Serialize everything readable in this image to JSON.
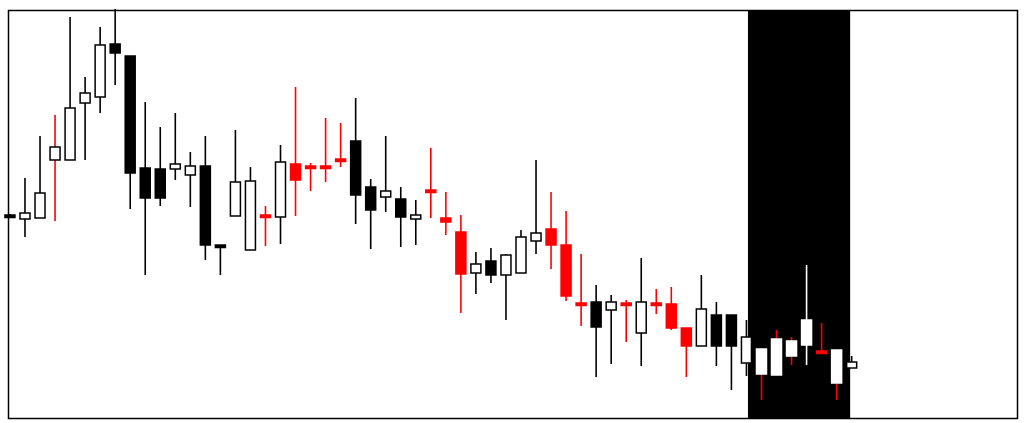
{
  "chart_data": {
    "type": "candlestick",
    "title": "",
    "xlabel": "",
    "ylabel": "",
    "axes_visible": false,
    "grid": false,
    "ylim": [
      0,
      408
    ],
    "xlim": [
      -0.13,
      67
    ],
    "colors": {
      "up_fill": "#ffffff",
      "up_stroke": "#000000",
      "down_black": "#000000",
      "down_red": "#ff0000",
      "highlight_band": "#000000",
      "highlight_candle": "#ffffff",
      "frame": "#000000"
    },
    "highlight_region": {
      "from_index": 49.1,
      "to_index": 55.9
    },
    "candles": [
      {
        "o": 203,
        "h": 204,
        "l": 202,
        "c": 203,
        "s": "black"
      },
      {
        "o": 199,
        "h": 240,
        "l": 181,
        "c": 205,
        "s": "hollow"
      },
      {
        "o": 200,
        "h": 282,
        "l": 200,
        "c": 225,
        "s": "hollow"
      },
      {
        "o": 258,
        "h": 303,
        "l": 197,
        "c": 271,
        "s": "hollow",
        "w": "red"
      },
      {
        "o": 258,
        "h": 401,
        "l": 258,
        "c": 310,
        "s": "hollow"
      },
      {
        "o": 315,
        "h": 341,
        "l": 258,
        "c": 325,
        "s": "hollow"
      },
      {
        "o": 321,
        "h": 391,
        "l": 305,
        "c": 373,
        "s": "hollow"
      },
      {
        "o": 374,
        "h": 409,
        "l": 333,
        "c": 365,
        "s": "black"
      },
      {
        "o": 362,
        "h": 362,
        "l": 209,
        "c": 245,
        "s": "black"
      },
      {
        "o": 250,
        "h": 316,
        "l": 143,
        "c": 220,
        "s": "black"
      },
      {
        "o": 249,
        "h": 291,
        "l": 212,
        "c": 220,
        "s": "black"
      },
      {
        "o": 249,
        "h": 305,
        "l": 238,
        "c": 254,
        "s": "hollow"
      },
      {
        "o": 243,
        "h": 266,
        "l": 211,
        "c": 252,
        "s": "hollow"
      },
      {
        "o": 252,
        "h": 282,
        "l": 158,
        "c": 173,
        "s": "black"
      },
      {
        "o": 173,
        "h": 173,
        "l": 143,
        "c": 173,
        "s": "black"
      },
      {
        "o": 202,
        "h": 288,
        "l": 202,
        "c": 236,
        "s": "hollow"
      },
      {
        "o": 168,
        "h": 251,
        "l": 168,
        "c": 237,
        "s": "hollow"
      },
      {
        "o": 203,
        "h": 212,
        "l": 172,
        "c": 203,
        "s": "red"
      },
      {
        "o": 201,
        "h": 273,
        "l": 174,
        "c": 256,
        "s": "hollow"
      },
      {
        "o": 254,
        "h": 331,
        "l": 202,
        "c": 238,
        "s": "red"
      },
      {
        "o": 252,
        "h": 255,
        "l": 227,
        "c": 252,
        "s": "red"
      },
      {
        "o": 252,
        "h": 300,
        "l": 236,
        "c": 252,
        "s": "red"
      },
      {
        "o": 259,
        "h": 295,
        "l": 251,
        "c": 259,
        "s": "red"
      },
      {
        "o": 277,
        "h": 320,
        "l": 194,
        "c": 223,
        "s": "black"
      },
      {
        "o": 231,
        "h": 239,
        "l": 169,
        "c": 208,
        "s": "black"
      },
      {
        "o": 221,
        "h": 282,
        "l": 206,
        "c": 227,
        "s": "hollow"
      },
      {
        "o": 219,
        "h": 231,
        "l": 171,
        "c": 201,
        "s": "black"
      },
      {
        "o": 199,
        "h": 218,
        "l": 173,
        "c": 203,
        "s": "hollow"
      },
      {
        "o": 228,
        "h": 270,
        "l": 200,
        "c": 228,
        "s": "red"
      },
      {
        "o": 200,
        "h": 226,
        "l": 183,
        "c": 196,
        "s": "red"
      },
      {
        "o": 186,
        "h": 203,
        "l": 105,
        "c": 144,
        "s": "red"
      },
      {
        "o": 145,
        "h": 166,
        "l": 124,
        "c": 154,
        "s": "hollow"
      },
      {
        "o": 157,
        "h": 170,
        "l": 135,
        "c": 143,
        "s": "black"
      },
      {
        "o": 143,
        "h": 164,
        "l": 98,
        "c": 163,
        "s": "hollow"
      },
      {
        "o": 145,
        "h": 188,
        "l": 145,
        "c": 181,
        "s": "hollow"
      },
      {
        "o": 177,
        "h": 258,
        "l": 164,
        "c": 185,
        "s": "hollow"
      },
      {
        "o": 189,
        "h": 226,
        "l": 149,
        "c": 173,
        "s": "red"
      },
      {
        "o": 173,
        "h": 207,
        "l": 117,
        "c": 122,
        "s": "red"
      },
      {
        "o": 115,
        "h": 164,
        "l": 92,
        "c": 115,
        "s": "red"
      },
      {
        "o": 116,
        "h": 133,
        "l": 41,
        "c": 91,
        "s": "black"
      },
      {
        "o": 108,
        "h": 123,
        "l": 54,
        "c": 116,
        "s": "hollow"
      },
      {
        "o": 115,
        "h": 118,
        "l": 76,
        "c": 115,
        "s": "red"
      },
      {
        "o": 85,
        "h": 160,
        "l": 52,
        "c": 116,
        "s": "hollow"
      },
      {
        "o": 115,
        "h": 129,
        "l": 104,
        "c": 115,
        "s": "red"
      },
      {
        "o": 114,
        "h": 131,
        "l": 88,
        "c": 90,
        "s": "red"
      },
      {
        "o": 90,
        "h": 90,
        "l": 41,
        "c": 72,
        "s": "red"
      },
      {
        "o": 72,
        "h": 143,
        "l": 72,
        "c": 109,
        "s": "hollow"
      },
      {
        "o": 103,
        "h": 116,
        "l": 52,
        "c": 72,
        "s": "black"
      },
      {
        "o": 103,
        "h": 103,
        "l": 28,
        "c": 72,
        "s": "black"
      },
      {
        "o": 55,
        "h": 98,
        "l": 42,
        "c": 81,
        "s": "hollow"
      },
      {
        "o": 44,
        "h": 70,
        "l": 18,
        "c": 69,
        "s": "white",
        "w": "red"
      },
      {
        "o": 43,
        "h": 88,
        "l": 43,
        "c": 79,
        "s": "white",
        "w": "red"
      },
      {
        "o": 62,
        "h": 81,
        "l": 53,
        "c": 77,
        "s": "white",
        "w": "red"
      },
      {
        "o": 73,
        "h": 153,
        "l": 53,
        "c": 98,
        "s": "white"
      },
      {
        "o": 67,
        "h": 95,
        "l": 67,
        "c": 67,
        "s": "red"
      },
      {
        "o": 68,
        "h": 68,
        "l": 18,
        "c": 35,
        "s": "white",
        "w": "red"
      },
      {
        "o": 50,
        "h": 62,
        "l": 50,
        "c": 56,
        "s": "hollow"
      }
    ]
  }
}
